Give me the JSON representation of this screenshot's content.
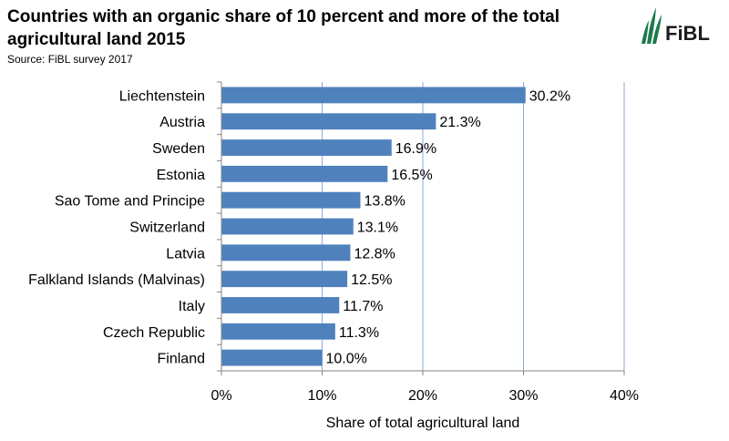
{
  "header": {
    "title": "Countries with an organic share of 10 percent and more of the total agricultural land 2015",
    "source": "Source: FiBL survey 2017",
    "logo_text": "FiBL"
  },
  "colors": {
    "bar": "#4f81bd",
    "grid": "#8eaadb",
    "axis": "#868686",
    "logo": "#1c7a4c"
  },
  "chart_data": {
    "type": "bar",
    "orientation": "horizontal",
    "categories": [
      "Liechtenstein",
      "Austria",
      "Sweden",
      "Estonia",
      "Sao Tome and Principe",
      "Switzerland",
      "Latvia",
      "Falkland Islands (Malvinas)",
      "Italy",
      "Czech Republic",
      "Finland"
    ],
    "values": [
      30.2,
      21.3,
      16.9,
      16.5,
      13.8,
      13.1,
      12.8,
      12.5,
      11.7,
      11.3,
      10.0
    ],
    "value_labels": [
      "30.2%",
      "21.3%",
      "16.9%",
      "16.5%",
      "13.8%",
      "13.1%",
      "12.8%",
      "12.5%",
      "11.7%",
      "11.3%",
      "10.0%"
    ],
    "xlabel": "Share of total agricultural land",
    "ylabel": "",
    "xlim": [
      0,
      40
    ],
    "xticks": [
      0,
      10,
      20,
      30,
      40
    ],
    "xtick_labels": [
      "0%",
      "10%",
      "20%",
      "30%",
      "40%"
    ],
    "grid": true,
    "legend": "none"
  }
}
